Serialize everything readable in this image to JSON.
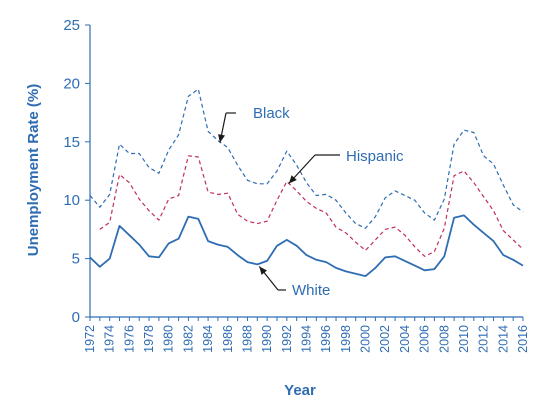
{
  "chart_data": {
    "type": "line",
    "title": "",
    "xlabel": "Year",
    "ylabel": "Unemployment Rate (%)",
    "ylim": [
      0,
      25
    ],
    "yticks": [
      "0",
      "5",
      "10",
      "15",
      "20",
      "25"
    ],
    "x": [
      1972,
      1973,
      1974,
      1975,
      1976,
      1977,
      1978,
      1979,
      1980,
      1981,
      1982,
      1983,
      1984,
      1985,
      1986,
      1987,
      1988,
      1989,
      1990,
      1991,
      1992,
      1993,
      1994,
      1995,
      1996,
      1997,
      1998,
      1999,
      2000,
      2001,
      2002,
      2003,
      2004,
      2005,
      2006,
      2007,
      2008,
      2009,
      2010,
      2011,
      2012,
      2013,
      2014,
      2015,
      2016
    ],
    "xticks": [
      "1972",
      "1974",
      "1976",
      "1978",
      "1980",
      "1982",
      "1984",
      "1986",
      "1988",
      "1990",
      "1992",
      "1994",
      "1996",
      "1998",
      "2000",
      "2002",
      "2004",
      "2006",
      "2008",
      "2010",
      "2012",
      "2014",
      "2016"
    ],
    "grid": false,
    "series": [
      {
        "name": "Black",
        "color": "#2f6db3",
        "style": "dashed",
        "x": [
          1972,
          1973,
          1974,
          1975,
          1976,
          1977,
          1978,
          1979,
          1980,
          1981,
          1982,
          1983,
          1984,
          1985,
          1986,
          1987,
          1988,
          1989,
          1990,
          1991,
          1992,
          1993,
          1994,
          1995,
          1996,
          1997,
          1998,
          1999,
          2000,
          2001,
          2002,
          2003,
          2004,
          2005,
          2006,
          2007,
          2008,
          2009,
          2010,
          2011,
          2012,
          2013,
          2014,
          2015,
          2016
        ],
        "values": [
          10.4,
          9.4,
          10.5,
          14.8,
          14.0,
          14.0,
          12.8,
          12.3,
          14.3,
          15.6,
          18.9,
          19.5,
          15.9,
          15.1,
          14.5,
          13.0,
          11.7,
          11.4,
          11.4,
          12.5,
          14.2,
          13.0,
          11.5,
          10.4,
          10.5,
          10.0,
          8.9,
          8.0,
          7.6,
          8.6,
          10.2,
          10.8,
          10.4,
          10.0,
          8.9,
          8.3,
          10.1,
          14.8,
          16.0,
          15.8,
          13.8,
          13.1,
          11.3,
          9.6,
          9.0
        ]
      },
      {
        "name": "Hispanic",
        "color": "#c0305e",
        "style": "dashed",
        "x": [
          1973,
          1974,
          1975,
          1976,
          1977,
          1978,
          1979,
          1980,
          1981,
          1982,
          1983,
          1984,
          1985,
          1986,
          1987,
          1988,
          1989,
          1990,
          1991,
          1992,
          1993,
          1994,
          1995,
          1996,
          1997,
          1998,
          1999,
          2000,
          2001,
          2002,
          2003,
          2004,
          2005,
          2006,
          2007,
          2008,
          2009,
          2010,
          2011,
          2012,
          2013,
          2014,
          2015,
          2016
        ],
        "values": [
          7.5,
          8.1,
          12.2,
          11.5,
          10.1,
          9.1,
          8.3,
          10.1,
          10.4,
          13.8,
          13.7,
          10.7,
          10.5,
          10.6,
          8.8,
          8.2,
          8.0,
          8.2,
          10.0,
          11.6,
          10.8,
          9.9,
          9.3,
          8.9,
          7.7,
          7.2,
          6.4,
          5.7,
          6.6,
          7.5,
          7.7,
          7.0,
          6.0,
          5.2,
          5.6,
          7.6,
          12.1,
          12.5,
          11.5,
          10.3,
          9.1,
          7.4,
          6.6,
          5.8
        ]
      },
      {
        "name": "White",
        "color": "#2f6db3",
        "style": "solid",
        "x": [
          1972,
          1973,
          1974,
          1975,
          1976,
          1977,
          1978,
          1979,
          1980,
          1981,
          1982,
          1983,
          1984,
          1985,
          1986,
          1987,
          1988,
          1989,
          1990,
          1991,
          1992,
          1993,
          1994,
          1995,
          1996,
          1997,
          1998,
          1999,
          2000,
          2001,
          2002,
          2003,
          2004,
          2005,
          2006,
          2007,
          2008,
          2009,
          2010,
          2011,
          2012,
          2013,
          2014,
          2015,
          2016
        ],
        "values": [
          5.1,
          4.3,
          5.0,
          7.8,
          7.0,
          6.2,
          5.2,
          5.1,
          6.3,
          6.7,
          8.6,
          8.4,
          6.5,
          6.2,
          6.0,
          5.3,
          4.7,
          4.5,
          4.8,
          6.1,
          6.6,
          6.1,
          5.3,
          4.9,
          4.7,
          4.2,
          3.9,
          3.7,
          3.5,
          4.2,
          5.1,
          5.2,
          4.8,
          4.4,
          4.0,
          4.1,
          5.2,
          8.5,
          8.7,
          7.9,
          7.2,
          6.5,
          5.3,
          4.9,
          4.4
        ]
      }
    ],
    "annotations": [
      {
        "text": "Black",
        "series": "Black"
      },
      {
        "text": "Hispanic",
        "series": "Hispanic"
      },
      {
        "text": "White",
        "series": "White"
      }
    ]
  }
}
